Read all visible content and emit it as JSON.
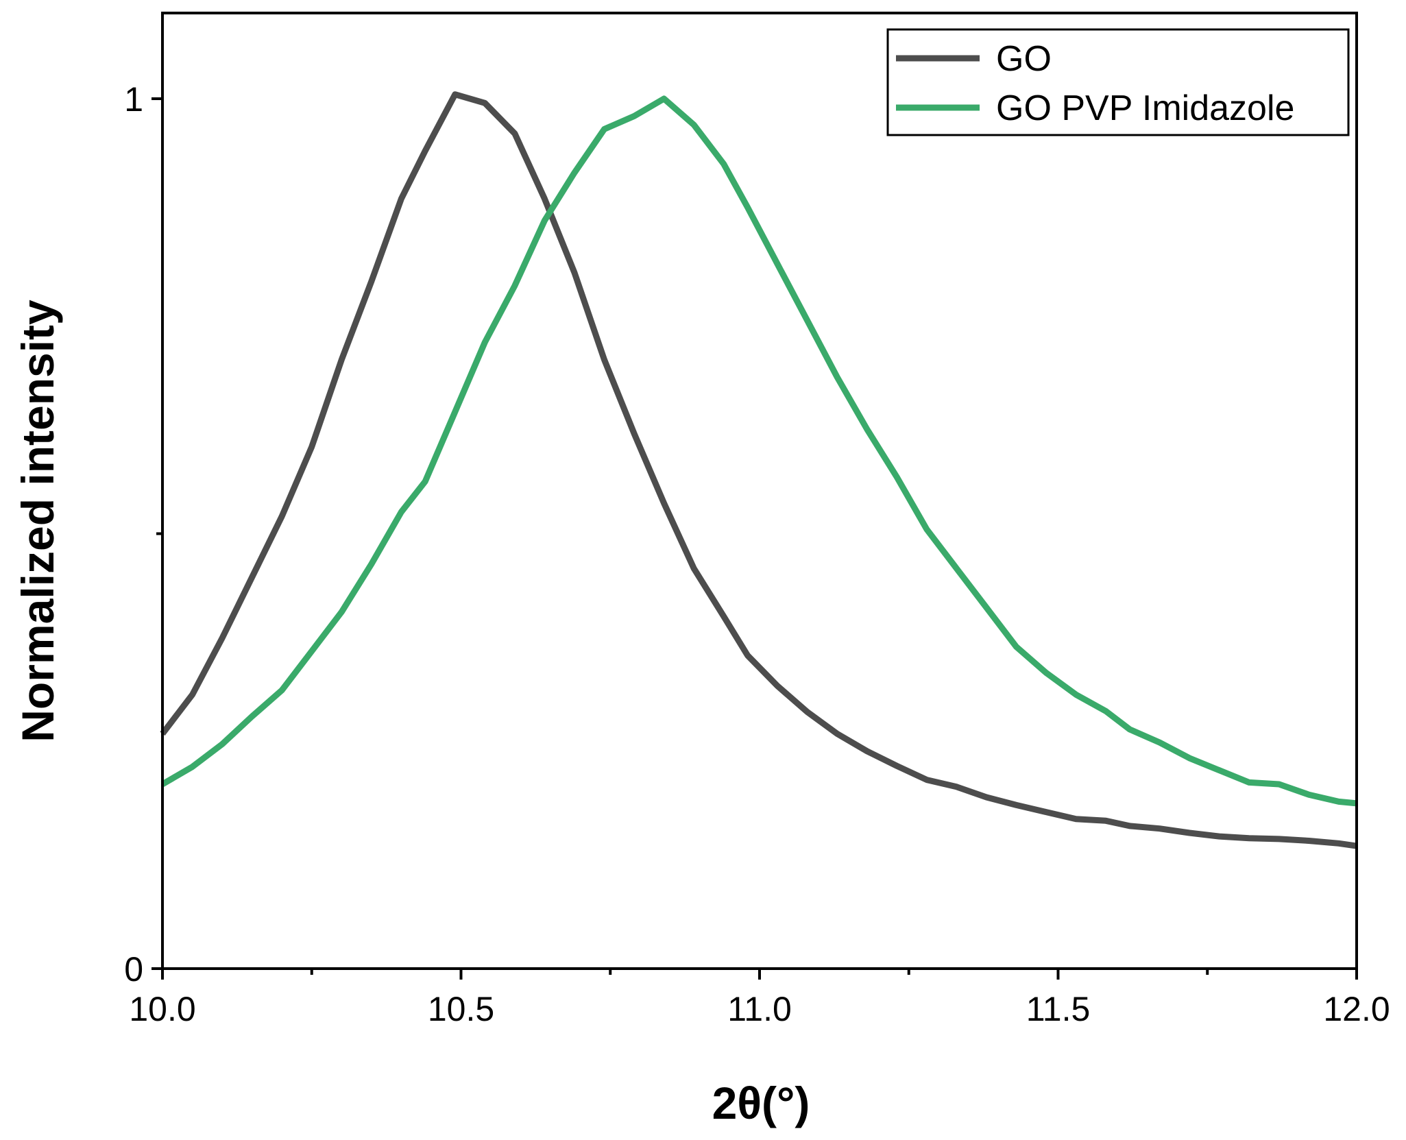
{
  "chart_data": {
    "type": "line",
    "title": "",
    "xlabel": "2θ(°)",
    "ylabel": "Normalized intensity",
    "xlim": [
      10.0,
      12.0
    ],
    "ylim": [
      0,
      1.1
    ],
    "x_ticks": [
      10.0,
      10.5,
      11.0,
      11.5,
      12.0
    ],
    "x_tick_labels": [
      "10.0",
      "10.5",
      "11.0",
      "11.5",
      "12.0"
    ],
    "y_ticks": [
      0,
      1
    ],
    "y_tick_labels": [
      "0",
      "1"
    ],
    "grid": false,
    "legend_position": "top-right",
    "series": [
      {
        "name": "GO",
        "color": "#4d4d4d",
        "x": [
          10.0,
          10.05,
          10.1,
          10.15,
          10.2,
          10.25,
          10.3,
          10.35,
          10.4,
          10.44,
          10.49,
          10.54,
          10.59,
          10.64,
          10.69,
          10.74,
          10.79,
          10.84,
          10.89,
          10.94,
          10.98,
          11.03,
          11.08,
          11.13,
          11.18,
          11.23,
          11.28,
          11.33,
          11.38,
          11.43,
          11.48,
          11.53,
          11.58,
          11.62,
          11.67,
          11.72,
          11.77,
          11.82,
          11.87,
          11.92,
          11.97,
          12.0
        ],
        "y": [
          0.27,
          0.315,
          0.38,
          0.45,
          0.52,
          0.6,
          0.7,
          0.79,
          0.885,
          0.94,
          1.005,
          0.995,
          0.96,
          0.885,
          0.8,
          0.7,
          0.615,
          0.535,
          0.46,
          0.405,
          0.36,
          0.325,
          0.295,
          0.27,
          0.25,
          0.233,
          0.217,
          0.209,
          0.197,
          0.188,
          0.18,
          0.172,
          0.17,
          0.164,
          0.161,
          0.156,
          0.152,
          0.15,
          0.149,
          0.147,
          0.144,
          0.141
        ]
      },
      {
        "name": "GO PVP Imidazole",
        "color": "#3aaa6a",
        "x": [
          10.0,
          10.05,
          10.1,
          10.15,
          10.2,
          10.25,
          10.3,
          10.35,
          10.4,
          10.44,
          10.49,
          10.54,
          10.59,
          10.64,
          10.69,
          10.74,
          10.79,
          10.84,
          10.89,
          10.94,
          10.98,
          11.03,
          11.08,
          11.13,
          11.18,
          11.23,
          11.28,
          11.33,
          11.38,
          11.43,
          11.48,
          11.53,
          11.58,
          11.62,
          11.67,
          11.72,
          11.77,
          11.82,
          11.87,
          11.92,
          11.97,
          12.0
        ],
        "y": [
          0.212,
          0.232,
          0.258,
          0.29,
          0.32,
          0.365,
          0.41,
          0.465,
          0.525,
          0.56,
          0.64,
          0.72,
          0.785,
          0.86,
          0.915,
          0.965,
          0.98,
          1.0,
          0.97,
          0.925,
          0.875,
          0.81,
          0.745,
          0.68,
          0.62,
          0.565,
          0.505,
          0.46,
          0.415,
          0.37,
          0.34,
          0.315,
          0.296,
          0.275,
          0.26,
          0.242,
          0.228,
          0.214,
          0.212,
          0.2,
          0.192,
          0.19
        ]
      }
    ]
  }
}
